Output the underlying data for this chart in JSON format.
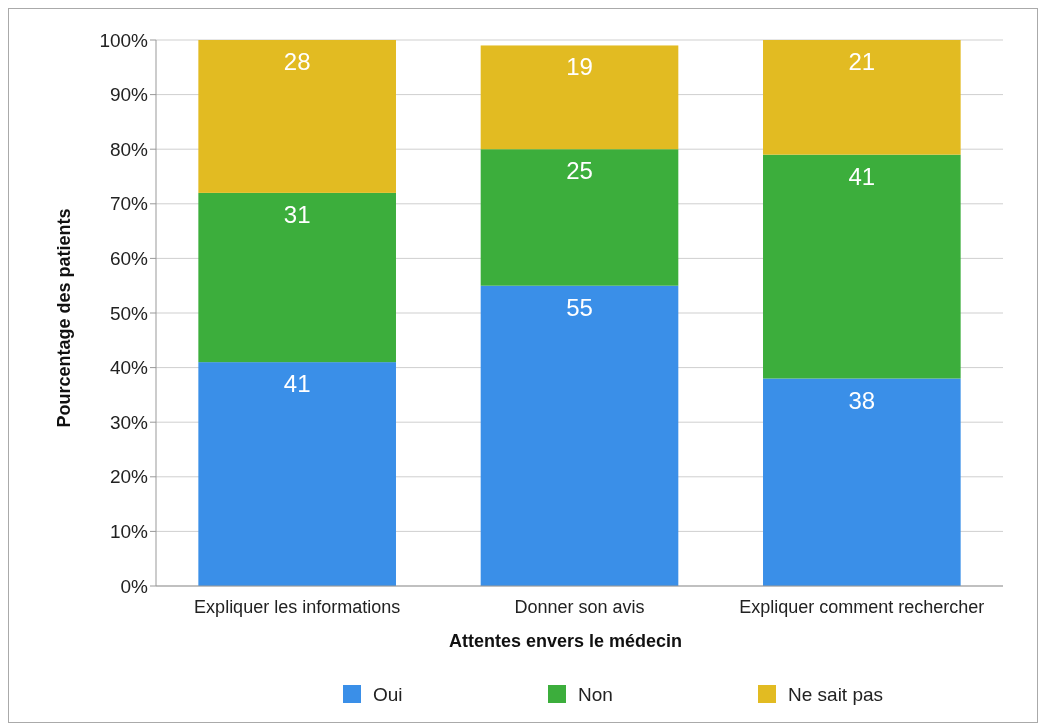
{
  "chart_data": {
    "type": "bar",
    "stacked": true,
    "xlabel": "Attentes envers le médecin",
    "ylabel": "Pourcentage des patients",
    "categories": [
      "Expliquer les informations",
      "Donner son avis",
      "Expliquer comment rechercher"
    ],
    "series": [
      {
        "name": "Oui",
        "color": "#3a8fe8",
        "values": [
          41,
          55,
          38
        ]
      },
      {
        "name": "Non",
        "color": "#3cae3c",
        "values": [
          31,
          25,
          41
        ]
      },
      {
        "name": "Ne sait pas",
        "color": "#e2bb22",
        "values": [
          28,
          19,
          21
        ]
      }
    ],
    "ylim": [
      0,
      100
    ],
    "yticks": [
      {
        "value": 0,
        "label": "0%"
      },
      {
        "value": 10,
        "label": "10%"
      },
      {
        "value": 20,
        "label": "20%"
      },
      {
        "value": 30,
        "label": "30%"
      },
      {
        "value": 40,
        "label": "40%"
      },
      {
        "value": 50,
        "label": "50%"
      },
      {
        "value": 60,
        "label": "60%"
      },
      {
        "value": 70,
        "label": "70%"
      },
      {
        "value": 80,
        "label": "80%"
      },
      {
        "value": 90,
        "label": "90%"
      },
      {
        "value": 100,
        "label": "100%"
      }
    ],
    "grid": "y",
    "legend": "bottom",
    "data_labels": true
  }
}
